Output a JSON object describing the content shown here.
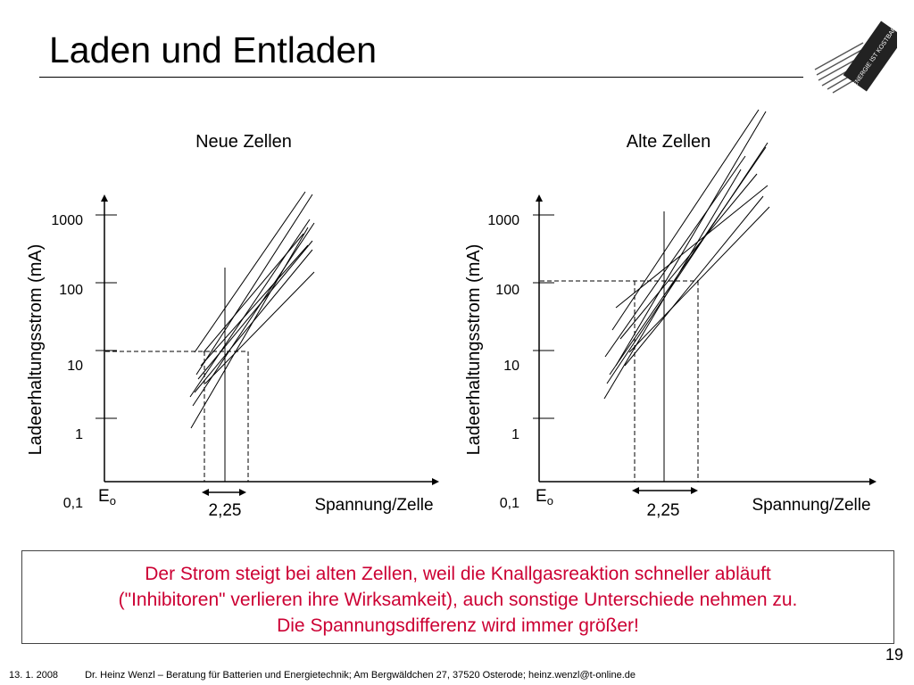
{
  "slide": {
    "title": "Laden und Entladen",
    "page_number": "19",
    "footer_date": "13. 1. 2008",
    "footer_text": "Dr. Heinz Wenzl – Beratung für Batterien und Energietechnik; Am Bergwäldchen 27, 37520 Osterode; heinz.wenzl@t-online.de",
    "logo_text": "ENERGIE IST KOSTBAR"
  },
  "info_box": {
    "lines": [
      "Der Strom steigt bei alten Zellen, weil die Knallgasreaktion schneller abläuft",
      "(\"Inhibitoren\" verlieren ihre Wirksamkeit), auch sonstige Unterschiede nehmen zu.",
      "Die Spannungsdifferenz wird immer größer!"
    ],
    "color": "#cc0033"
  },
  "chart_data": [
    {
      "type": "line",
      "title": "Neue Zellen",
      "ylabel": "Ladeerhaltungsstrom (mA)",
      "xlabel": "Spannung/Zelle",
      "y_scale": "log",
      "y_ticks": [
        "0,1",
        "1",
        "10",
        "100",
        "1000"
      ],
      "x_marker_label": "Eo",
      "spread_label": "2,25",
      "series_count": 10
    },
    {
      "type": "line",
      "title": "Alte Zellen",
      "ylabel": "Ladeerhaltungsstrom (mA)",
      "xlabel": "Spannung/Zelle",
      "y_scale": "log",
      "y_ticks": [
        "0,1",
        "1",
        "10",
        "100",
        "1000"
      ],
      "x_marker_label": "Eo",
      "spread_label": "2,25",
      "series_count": 10
    }
  ]
}
